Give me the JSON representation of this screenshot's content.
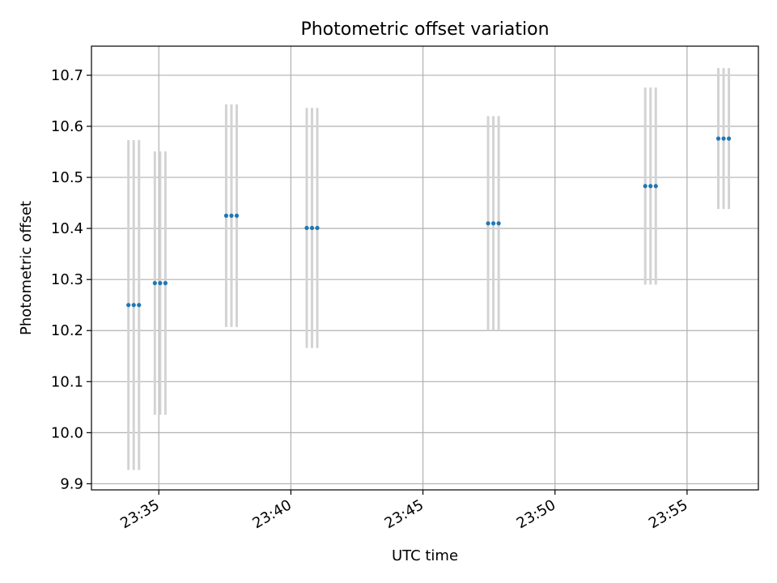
{
  "chart_data": {
    "type": "scatter",
    "title": "Photometric offset variation",
    "xlabel": "UTC time",
    "ylabel": "Photometric offset",
    "grid": true,
    "legend": "none",
    "xlim": [
      "23:32:27",
      "23:57:42"
    ],
    "ylim": [
      9.888,
      10.757
    ],
    "xticks": [
      "23:35",
      "23:40",
      "23:45",
      "23:50",
      "23:55"
    ],
    "yticks": [
      "9.9",
      "10.0",
      "10.1",
      "10.2",
      "10.3",
      "10.4",
      "10.5",
      "10.6",
      "10.7"
    ],
    "marker_color": "#1f77b4",
    "errorbar_color": "#d3d3d3",
    "groups": [
      {
        "x": [
          "23:33:51",
          "23:34:03",
          "23:34:15"
        ],
        "y": 10.25,
        "err": 0.323
      },
      {
        "x": [
          "23:34:51",
          "23:35:03",
          "23:35:15"
        ],
        "y": 10.293,
        "err": 0.258
      },
      {
        "x": [
          "23:37:33",
          "23:37:45",
          "23:37:57"
        ],
        "y": 10.425,
        "err": 0.218
      },
      {
        "x": [
          "23:40:36",
          "23:40:48",
          "23:41:00"
        ],
        "y": 10.401,
        "err": 0.235
      },
      {
        "x": [
          "23:47:28",
          "23:47:40",
          "23:47:52"
        ],
        "y": 10.41,
        "err": 0.21
      },
      {
        "x": [
          "23:53:25",
          "23:53:37",
          "23:53:49"
        ],
        "y": 10.483,
        "err": 0.193
      },
      {
        "x": [
          "23:56:11",
          "23:56:23",
          "23:56:35"
        ],
        "y": 10.576,
        "err": 0.138
      }
    ]
  }
}
